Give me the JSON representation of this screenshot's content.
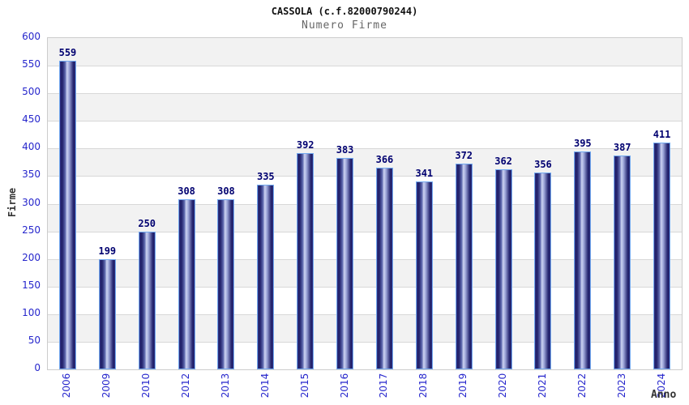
{
  "header": {
    "title": "CASSOLA (c.f.82000790244)",
    "subtitle": "Numero Firme"
  },
  "chart_data": {
    "type": "bar",
    "title": "CASSOLA (c.f.82000790244)",
    "subtitle": "Numero Firme",
    "xlabel": "Anno",
    "ylabel": "Firme",
    "categories": [
      "2006",
      "2009",
      "2010",
      "2012",
      "2013",
      "2014",
      "2015",
      "2016",
      "2017",
      "2018",
      "2019",
      "2020",
      "2021",
      "2022",
      "2023",
      "2024"
    ],
    "values": [
      559,
      199,
      250,
      308,
      308,
      335,
      392,
      383,
      366,
      341,
      372,
      362,
      356,
      395,
      387,
      411
    ],
    "ylim": [
      0,
      600
    ],
    "yticks": [
      0,
      50,
      100,
      150,
      200,
      250,
      300,
      350,
      400,
      450,
      500,
      550,
      600
    ],
    "grid": true,
    "band_fill": true,
    "legend": "none",
    "colors": {
      "tick_label": "#2626cc",
      "value_label": "#000070",
      "bar_edge": "#73aaf0",
      "bar_dark": "#1f1f66",
      "bar_light": "#ccd3f2",
      "band_gray": "#f2f2f2",
      "gridline": "#d8d8d8",
      "plot_border": "#cccccc",
      "subtitle": "#666666",
      "axis_title": "#333333"
    }
  }
}
